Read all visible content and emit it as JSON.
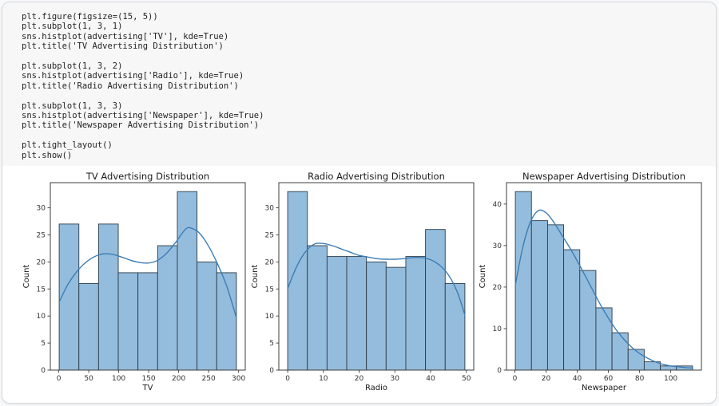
{
  "code_cell": {
    "source": "plt.figure(figsize=(15, 5))\nplt.subplot(1, 3, 1)\nsns.histplot(advertising['TV'], kde=True)\nplt.title('TV Advertising Distribution')\n\nplt.subplot(1, 3, 2)\nsns.histplot(advertising['Radio'], kde=True)\nplt.title('Radio Advertising Distribution')\n\nplt.subplot(1, 3, 3)\nsns.histplot(advertising['Newspaper'], kde=True)\nplt.title('Newspaper Advertising Distribution')\n\nplt.tight_layout()\nplt.show()"
  },
  "colors": {
    "bar_fill": "#94bcdc",
    "bar_edge": "#2d3c49",
    "kde_line": "#3c7db5",
    "axis": "#3c3c3c",
    "tick_text": "#333333",
    "title_text": "#1a1a1a"
  },
  "chart_data": [
    {
      "type": "bar",
      "subtype": "histogram-with-kde",
      "title": "TV Advertising Distribution",
      "xlabel": "TV",
      "ylabel": "Count",
      "bin_start": 0.7,
      "bin_width": 32.856,
      "counts": [
        27,
        16,
        27,
        18,
        18,
        23,
        33,
        20,
        18
      ],
      "x_ticks": [
        0,
        50,
        100,
        150,
        200,
        250,
        300
      ],
      "y_ticks": [
        0,
        5,
        10,
        15,
        20,
        25,
        30
      ],
      "xlim": [
        -14.09,
        311.19
      ],
      "ylim": [
        0,
        34.65
      ],
      "grid": false,
      "legend": null,
      "kde": [
        [
          0.7,
          12.6
        ],
        [
          15,
          15.8
        ],
        [
          30,
          18.2
        ],
        [
          45,
          19.9
        ],
        [
          60,
          21.0
        ],
        [
          75,
          21.5
        ],
        [
          90,
          21.4
        ],
        [
          105,
          20.9
        ],
        [
          120,
          20.3
        ],
        [
          135,
          19.9
        ],
        [
          150,
          19.8
        ],
        [
          165,
          20.3
        ],
        [
          180,
          21.6
        ],
        [
          195,
          23.6
        ],
        [
          212,
          26.1
        ],
        [
          222,
          26.2
        ],
        [
          235,
          25.3
        ],
        [
          250,
          22.9
        ],
        [
          265,
          19.6
        ],
        [
          280,
          15.6
        ],
        [
          296.4,
          9.7
        ]
      ]
    },
    {
      "type": "bar",
      "subtype": "histogram-with-kde",
      "title": "Radio Advertising Distribution",
      "xlabel": "Radio",
      "ylabel": "Count",
      "bin_start": 0.0,
      "bin_width": 5.511,
      "counts": [
        33,
        23,
        21,
        21,
        20,
        19,
        21,
        26,
        16
      ],
      "x_ticks": [
        0,
        10,
        20,
        30,
        40,
        50
      ],
      "y_ticks": [
        0,
        5,
        10,
        15,
        20,
        25,
        30
      ],
      "xlim": [
        -2.48,
        52.08
      ],
      "ylim": [
        0,
        34.65
      ],
      "grid": false,
      "legend": null,
      "kde": [
        [
          0,
          15.1
        ],
        [
          2.5,
          19.1
        ],
        [
          5,
          21.9
        ],
        [
          7.5,
          23.3
        ],
        [
          10,
          23.4
        ],
        [
          12.5,
          23.0
        ],
        [
          15,
          22.4
        ],
        [
          17.5,
          21.8
        ],
        [
          20,
          21.2
        ],
        [
          22.5,
          20.9
        ],
        [
          25,
          20.6
        ],
        [
          27.5,
          20.5
        ],
        [
          30,
          20.5
        ],
        [
          32.5,
          20.6
        ],
        [
          35,
          20.8
        ],
        [
          37.5,
          20.8
        ],
        [
          40,
          20.4
        ],
        [
          42.5,
          19.4
        ],
        [
          45,
          17.6
        ],
        [
          47.5,
          14.4
        ],
        [
          49.6,
          10.2
        ]
      ]
    },
    {
      "type": "bar",
      "subtype": "histogram-with-kde",
      "title": "Newspaper Advertising Distribution",
      "xlabel": "Newspaper",
      "ylabel": "Count",
      "bin_start": 0.3,
      "bin_width": 10.336,
      "counts": [
        43,
        36,
        35,
        29,
        24,
        15,
        9,
        5,
        2,
        1,
        1
      ],
      "x_ticks": [
        0,
        20,
        40,
        60,
        80,
        100
      ],
      "y_ticks": [
        0,
        10,
        20,
        30,
        40
      ],
      "xlim": [
        -5.39,
        119.69
      ],
      "ylim": [
        0,
        45.15
      ],
      "grid": false,
      "legend": null,
      "kde": [
        [
          0.3,
          20.5
        ],
        [
          5,
          29.5
        ],
        [
          10,
          35.7
        ],
        [
          15,
          38.4
        ],
        [
          20,
          37.9
        ],
        [
          25,
          35.6
        ],
        [
          30,
          32.6
        ],
        [
          35,
          29.6
        ],
        [
          40,
          26.3
        ],
        [
          45,
          22.8
        ],
        [
          50,
          19.2
        ],
        [
          55,
          15.7
        ],
        [
          60,
          12.5
        ],
        [
          65,
          9.7
        ],
        [
          70,
          7.4
        ],
        [
          75,
          5.5
        ],
        [
          80,
          4.0
        ],
        [
          85,
          2.9
        ],
        [
          90,
          2.0
        ],
        [
          95,
          1.4
        ],
        [
          100,
          1.0
        ],
        [
          105,
          0.8
        ],
        [
          110,
          0.6
        ],
        [
          114,
          0.5
        ]
      ]
    }
  ]
}
